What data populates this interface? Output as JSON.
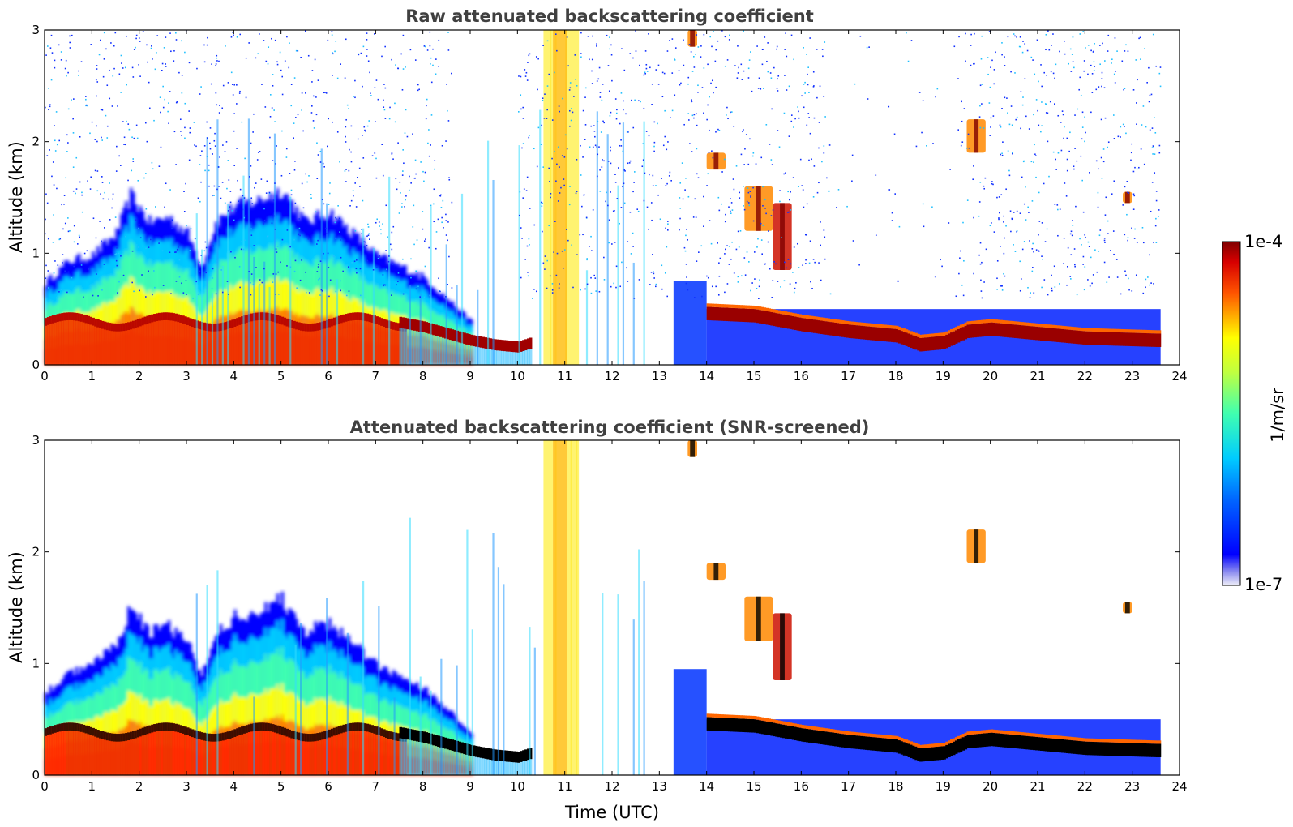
{
  "chart_data": [
    {
      "type": "heatmap",
      "title": "Raw attenuated backscattering coefficient",
      "xlabel": "",
      "ylabel": "Altitude (km)",
      "xlim": [
        0,
        24
      ],
      "ylim": [
        0,
        3
      ],
      "xticks": [
        "0",
        "1",
        "2",
        "3",
        "4",
        "5",
        "6",
        "7",
        "8",
        "9",
        "10",
        "11",
        "12",
        "13",
        "14",
        "15",
        "16",
        "17",
        "18",
        "19",
        "20",
        "21",
        "22",
        "23",
        "24"
      ],
      "yticks": [
        "0",
        "1",
        "2",
        "3"
      ],
      "data_end_time": 23.6,
      "aerosol_top_km": [
        [
          0,
          0.75
        ],
        [
          0.5,
          0.95
        ],
        [
          1,
          1.0
        ],
        [
          1.5,
          1.2
        ],
        [
          1.8,
          1.55
        ],
        [
          2.2,
          1.3
        ],
        [
          2.6,
          1.35
        ],
        [
          3.0,
          1.2
        ],
        [
          3.3,
          0.9
        ],
        [
          3.6,
          1.3
        ],
        [
          4.0,
          1.45
        ],
        [
          4.5,
          1.5
        ],
        [
          5.0,
          1.6
        ],
        [
          5.5,
          1.3
        ],
        [
          6.0,
          1.4
        ],
        [
          6.5,
          1.2
        ],
        [
          7.0,
          1.0
        ],
        [
          7.5,
          0.9
        ],
        [
          8.0,
          0.8
        ],
        [
          8.5,
          0.6
        ],
        [
          9.0,
          0.4
        ]
      ],
      "boundary_layer_cloud_km": [
        [
          7.5,
          0.38
        ],
        [
          8.0,
          0.34
        ],
        [
          8.5,
          0.28
        ],
        [
          9.0,
          0.22
        ],
        [
          9.5,
          0.18
        ],
        [
          10.0,
          0.16
        ],
        [
          10.3,
          0.2
        ]
      ],
      "cloud_layer_km": [
        [
          14.0,
          0.46
        ],
        [
          15.0,
          0.44
        ],
        [
          15.5,
          0.4
        ],
        [
          16.0,
          0.36
        ],
        [
          17.0,
          0.3
        ],
        [
          18.0,
          0.26
        ],
        [
          18.5,
          0.18
        ],
        [
          19.0,
          0.2
        ],
        [
          19.5,
          0.3
        ],
        [
          20.0,
          0.32
        ],
        [
          21.0,
          0.28
        ],
        [
          22.0,
          0.24
        ],
        [
          23.5,
          0.22
        ]
      ],
      "elevated_features": [
        {
          "t": [
            14.0,
            14.4
          ],
          "alt_km": [
            1.75,
            1.9
          ]
        },
        {
          "t": [
            14.8,
            15.4
          ],
          "alt_km": [
            1.2,
            1.6
          ]
        },
        {
          "t": [
            15.4,
            15.8
          ],
          "alt_km": [
            0.85,
            1.45
          ]
        },
        {
          "t": [
            19.5,
            19.9
          ],
          "alt_km": [
            1.9,
            2.2
          ]
        },
        {
          "t": [
            22.8,
            23.0
          ],
          "alt_km": [
            1.45,
            1.55
          ]
        },
        {
          "t": [
            10.5,
            11.3
          ],
          "alt_km": [
            0.0,
            3.0
          ]
        },
        {
          "t": [
            13.6,
            13.8
          ],
          "alt_km": [
            2.85,
            3.0
          ]
        }
      ]
    },
    {
      "type": "heatmap",
      "title": "Attenuated backscattering coefficient (SNR-screened)",
      "xlabel": "Time (UTC)",
      "ylabel": "Altitude (km)",
      "xlim": [
        0,
        24
      ],
      "ylim": [
        0,
        3
      ],
      "xticks": [
        "0",
        "1",
        "2",
        "3",
        "4",
        "5",
        "6",
        "7",
        "8",
        "9",
        "10",
        "11",
        "12",
        "13",
        "14",
        "15",
        "16",
        "17",
        "18",
        "19",
        "20",
        "21",
        "22",
        "23",
        "24"
      ],
      "yticks": [
        "0",
        "1",
        "2",
        "3"
      ],
      "data_end_time": 23.6,
      "saturated_color": "#000000"
    }
  ],
  "colorbar": {
    "label": "1/m/sr",
    "max_label": "1e-4",
    "min_label": "1e-7",
    "scale": "log",
    "range": [
      1e-07,
      0.0001
    ],
    "colormap": "jet"
  }
}
